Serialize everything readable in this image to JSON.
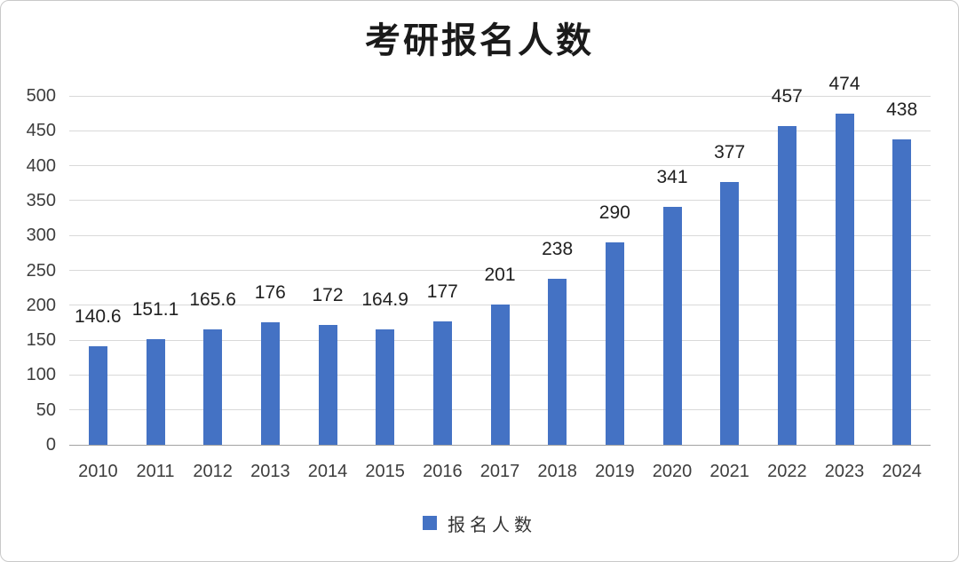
{
  "chart_data": {
    "type": "bar",
    "title": "考研报名人数",
    "categories": [
      "2010",
      "2011",
      "2012",
      "2013",
      "2014",
      "2015",
      "2016",
      "2017",
      "2018",
      "2019",
      "2020",
      "2021",
      "2022",
      "2023",
      "2024"
    ],
    "series": [
      {
        "name": "报名人数",
        "values": [
          140.6,
          151.1,
          165.6,
          176,
          172,
          164.9,
          177,
          201,
          238,
          290,
          341,
          377,
          457,
          474,
          438
        ],
        "labels": [
          "140.6",
          "151.1",
          "165.6",
          "176",
          "172",
          "164.9",
          "177",
          "201",
          "238",
          "290",
          "341",
          "377",
          "457",
          "474",
          "438"
        ],
        "color": "#4472C4"
      }
    ],
    "xlabel": "",
    "ylabel": "",
    "ylim": [
      0,
      500
    ],
    "yticks": [
      0,
      50,
      100,
      150,
      200,
      250,
      300,
      350,
      400,
      450,
      500
    ],
    "grid": true,
    "legend": {
      "position": "bottom",
      "label": "报名人数",
      "swatch_color": "#4472C4"
    },
    "colors": {
      "bar": "#4472C4",
      "gridline": "#D9D9D9",
      "baseline": "#A3A3A3",
      "tick_text": "#3D3D3D",
      "value_label_text": "#212121",
      "title_text": "#1A1A1A"
    }
  }
}
